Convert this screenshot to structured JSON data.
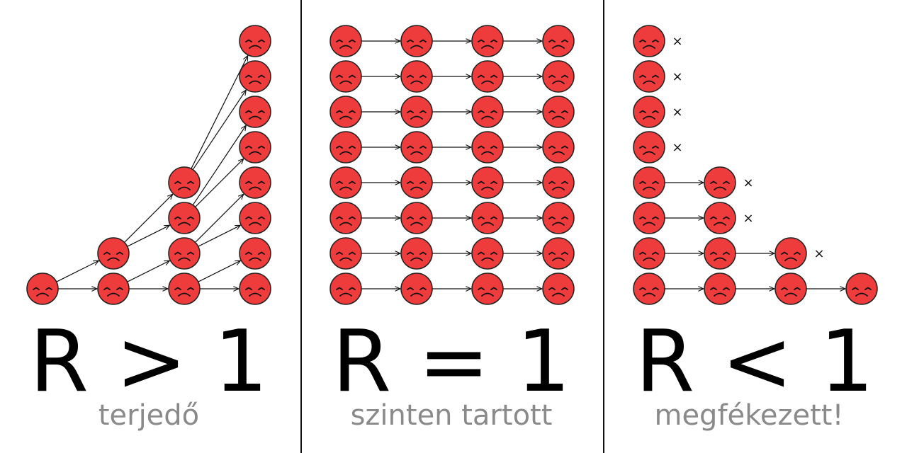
{
  "panels": [
    {
      "id": "left",
      "formula": "R > 1",
      "caption": "terjedő"
    },
    {
      "id": "middle",
      "formula": "R = 1",
      "caption": "szinten tartott"
    },
    {
      "id": "right",
      "formula": "R < 1",
      "caption": "megfékezett!"
    }
  ],
  "colors": {
    "face": "#ee3b3b",
    "stroke": "#222222",
    "caption": "#8a8a8a"
  },
  "icon": "sad-face-icon",
  "stop_mark": "×"
}
